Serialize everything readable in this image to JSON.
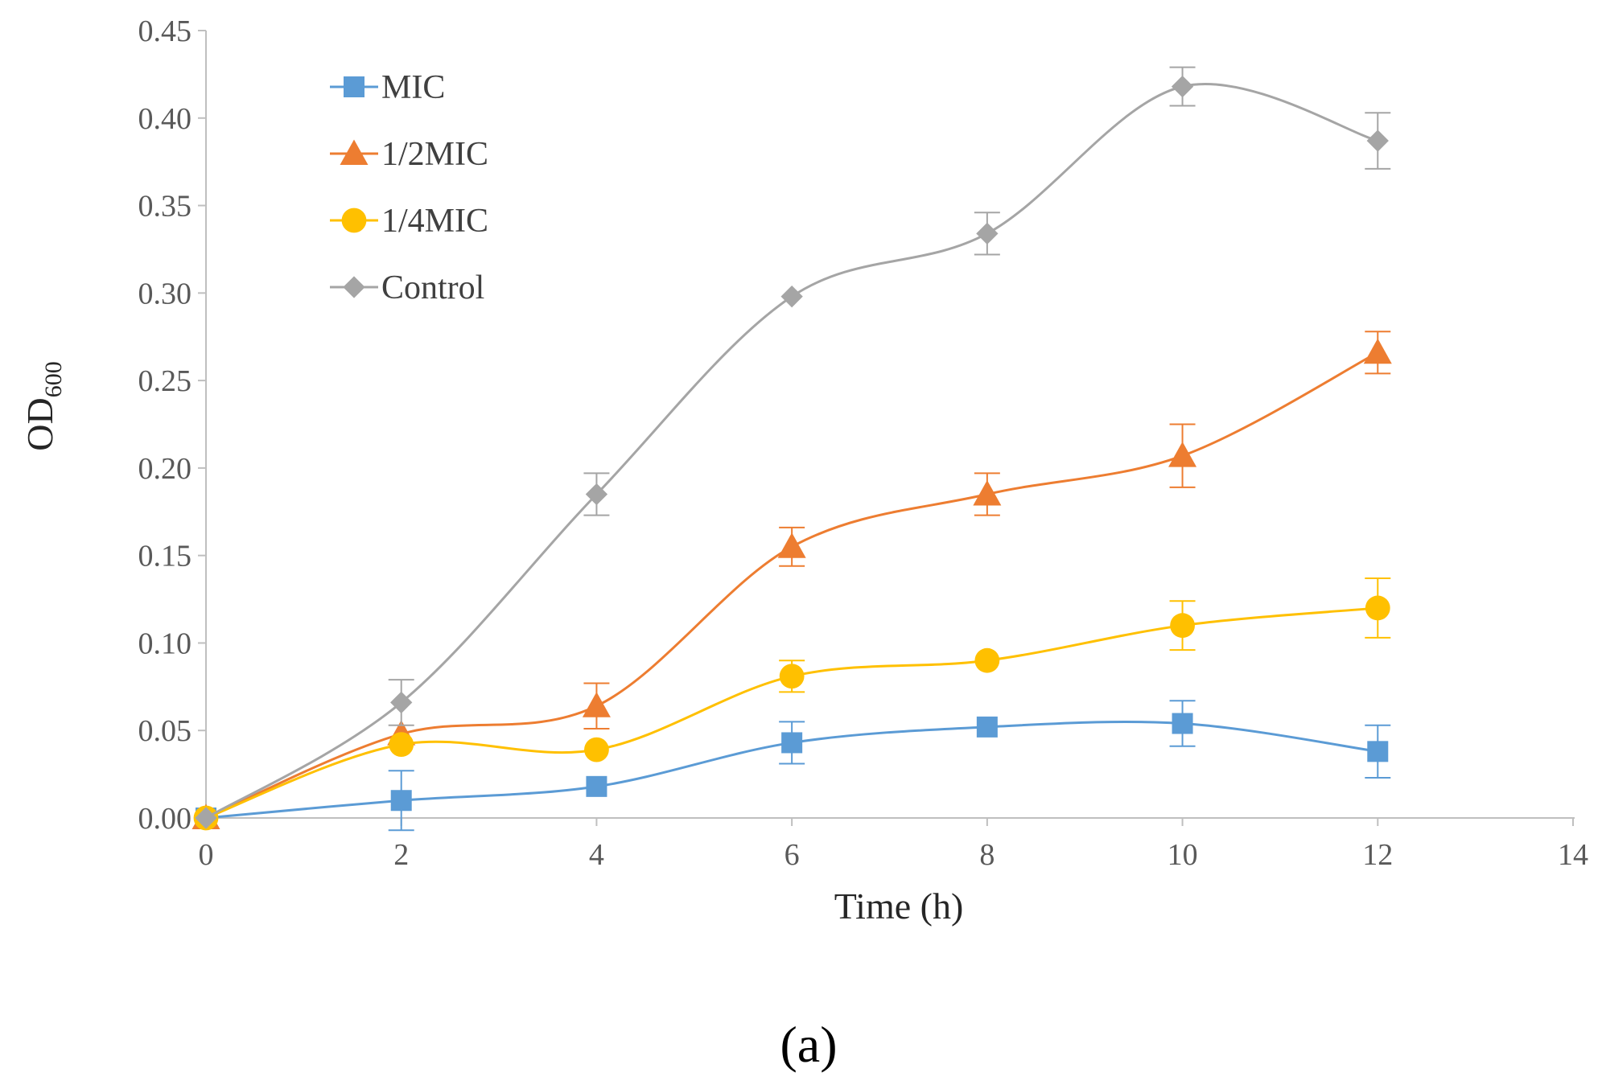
{
  "chart_data": {
    "type": "line",
    "title": "",
    "xlabel": "Time (h)",
    "ylabel": "OD",
    "ylabel_subscript": "600",
    "panel_label": "(a)",
    "xlim": [
      0,
      14
    ],
    "ylim": [
      0,
      0.45
    ],
    "x_ticks": [
      "0",
      "2",
      "4",
      "6",
      "8",
      "10",
      "12",
      "14"
    ],
    "y_ticks": [
      "0.00",
      "0.05",
      "0.10",
      "0.15",
      "0.20",
      "0.25",
      "0.30",
      "0.35",
      "0.40",
      "0.45"
    ],
    "x_tick_values": [
      0,
      2,
      4,
      6,
      8,
      10,
      12,
      14
    ],
    "y_tick_values": [
      0,
      0.05,
      0.1,
      0.15,
      0.2,
      0.25,
      0.3,
      0.35,
      0.4,
      0.45
    ],
    "grid": false,
    "legend_position": "top-left",
    "x": [
      0,
      2,
      4,
      6,
      8,
      10,
      12
    ],
    "series": [
      {
        "name": "MIC",
        "marker": "square",
        "color": "#5B9BD5",
        "values": [
          0.0,
          0.01,
          0.018,
          0.043,
          0.052,
          0.054,
          0.038
        ],
        "errors": [
          0.0,
          0.017,
          0.0,
          0.012,
          0.0,
          0.013,
          0.015
        ]
      },
      {
        "name": "1/2MIC",
        "marker": "triangle",
        "color": "#ED7D31",
        "values": [
          0.0,
          0.048,
          0.064,
          0.155,
          0.185,
          0.207,
          0.266
        ],
        "errors": [
          0.0,
          0.0,
          0.013,
          0.011,
          0.012,
          0.018,
          0.012
        ]
      },
      {
        "name": "1/4MIC",
        "marker": "circle",
        "color": "#FFC000",
        "values": [
          0.0,
          0.042,
          0.039,
          0.081,
          0.09,
          0.11,
          0.12
        ],
        "errors": [
          0.0,
          0.0,
          0.0,
          0.009,
          0.0,
          0.014,
          0.017
        ]
      },
      {
        "name": "Control",
        "marker": "diamond",
        "color": "#A5A5A5",
        "values": [
          0.0,
          0.066,
          0.185,
          0.298,
          0.334,
          0.418,
          0.387
        ],
        "errors": [
          0.0,
          0.013,
          0.012,
          0.0,
          0.012,
          0.011,
          0.016
        ]
      }
    ]
  }
}
